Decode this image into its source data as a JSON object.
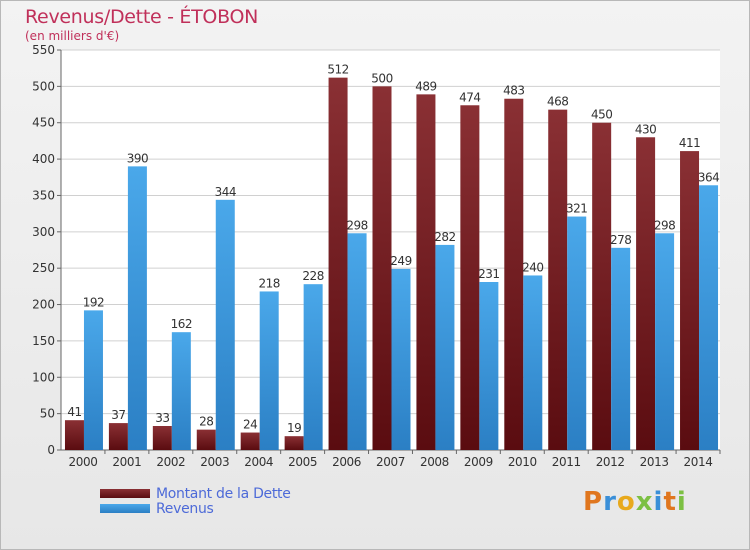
{
  "chart_data": {
    "type": "bar",
    "title": "Revenus/Dette - ÉTOBON",
    "subtitle": "(en milliers d'€)",
    "categories": [
      "2000",
      "2001",
      "2002",
      "2003",
      "2004",
      "2005",
      "2006",
      "2007",
      "2008",
      "2009",
      "2010",
      "2011",
      "2012",
      "2013",
      "2014"
    ],
    "series": [
      {
        "name": "Montant de la Dette",
        "color": "#7a1f23",
        "values": [
          41,
          37,
          33,
          28,
          24,
          19,
          512,
          500,
          489,
          474,
          483,
          468,
          450,
          430,
          411
        ]
      },
      {
        "name": "Revenus",
        "color": "#3f9ae0",
        "values": [
          192,
          390,
          162,
          344,
          218,
          228,
          298,
          249,
          282,
          231,
          240,
          321,
          278,
          298,
          364
        ]
      }
    ],
    "ylim": [
      0,
      550
    ],
    "yticks": [
      0,
      50,
      100,
      150,
      200,
      250,
      300,
      350,
      400,
      450,
      500,
      550
    ],
    "grid": true,
    "legend_position": "bottom-left"
  },
  "logo": {
    "letters": [
      "P",
      "r",
      "o",
      "x",
      "i",
      "t",
      "i"
    ],
    "colors": [
      "#e0761e",
      "#3a8fd8",
      "#e8a91c",
      "#7cc043",
      "#3a8fd8",
      "#e0761e",
      "#7cc043"
    ]
  }
}
